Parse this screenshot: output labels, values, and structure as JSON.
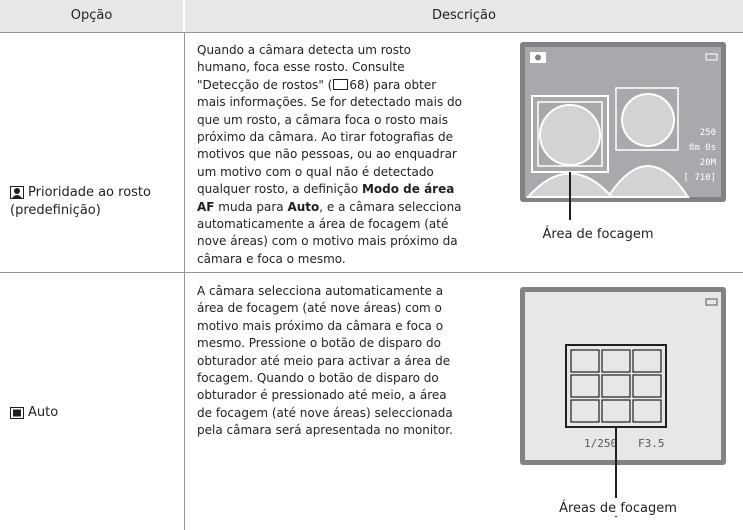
{
  "table": {
    "header": [
      "Opção",
      "Descrição"
    ],
    "rows": [
      {
        "option": [
          "Prioridade ao rosto",
          "(predefinição)"
        ],
        "description": [
          [
            "Quando a câmara detecta um rosto"
          ],
          [
            "humano, foca esse rosto. Consulte"
          ],
          [
            "\"Detecção de rostos\" (",
            "68) para obter"
          ],
          [
            "mais informações. Se for detectado mais do"
          ],
          [
            "que um rosto, a câmara foca o rosto mais"
          ],
          [
            "próximo da câmara. Ao tirar fotografias de"
          ],
          [
            "motivos que não pessoas, ou ao enquadrar"
          ],
          [
            "um motivo com o qual não é detectado"
          ],
          [
            "qualquer rosto, a definição ",
            "Modo de área"
          ],
          [
            "AF",
            " muda para ",
            "Auto",
            ", e a câmara selecciona"
          ],
          [
            "automaticamente a área de focagem (até"
          ],
          [
            "nove áreas) com o motivo mais próximo da"
          ],
          [
            "câmara e foca o mesmo."
          ]
        ],
        "figure": {
          "caption": "Área de focagem",
          "screen_texts": [
            "250",
            "8m 0s",
            "20M",
            "[ 710]"
          ]
        }
      },
      {
        "option": [
          "Auto"
        ],
        "description": [
          [
            "A câmara selecciona automaticamente a"
          ],
          [
            "área de focagem (até nove áreas) com o"
          ],
          [
            "motivo mais próximo da câmara e foca o"
          ],
          [
            "mesmo. Pressione o botão de disparo do"
          ],
          [
            "obturador até meio para activar a área de"
          ],
          [
            "focagem. Quando o botão de disparo do"
          ],
          [
            "obturador é pressionado até meio, a área"
          ],
          [
            "de focagem (até nove áreas) seleccionada"
          ],
          [
            "pela câmara será apresentada no monitor."
          ]
        ],
        "figure": {
          "caption": "Áreas de focagem",
          "screen_texts": [
            "1/250",
            "F3.5"
          ]
        }
      }
    ]
  }
}
